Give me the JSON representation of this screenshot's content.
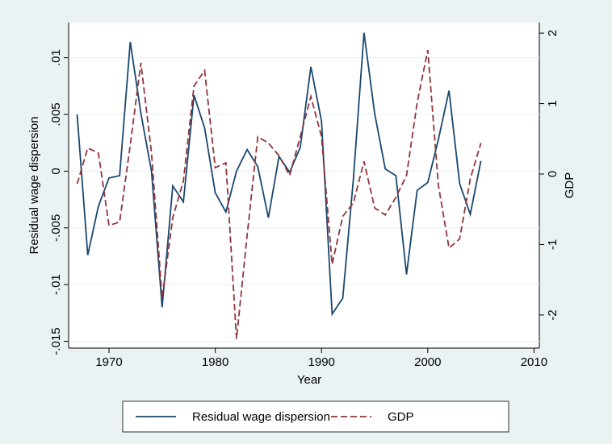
{
  "chart_data": {
    "type": "line",
    "x": [
      1967,
      1968,
      1969,
      1970,
      1971,
      1972,
      1973,
      1974,
      1975,
      1976,
      1977,
      1978,
      1979,
      1980,
      1981,
      1982,
      1983,
      1984,
      1985,
      1986,
      1987,
      1988,
      1989,
      1990,
      1991,
      1992,
      1993,
      1994,
      1995,
      1996,
      1997,
      1998,
      1999,
      2000,
      2001,
      2002,
      2003,
      2004,
      2005
    ],
    "series": [
      {
        "name": "Residual wage dispersion",
        "color": "#1a476f",
        "dash": "solid",
        "values": [
          0.005,
          -0.0074,
          -0.0031,
          -0.0006,
          -0.0004,
          0.0114,
          0.0051,
          0,
          -0.012,
          -0.0013,
          -0.0027,
          0.0067,
          0.0038,
          -0.0019,
          -0.0036,
          0,
          0.0019,
          0.0004,
          -0.0041,
          0.0013,
          -0.0001,
          0.0021,
          0.0092,
          0.0044,
          -0.0126,
          -0.0112,
          -0.0007,
          0.0122,
          0.0051,
          0.0002,
          -0.0004,
          -0.0091,
          -0.0017,
          -0.001,
          0.0028,
          0.0071,
          -0.0011,
          -0.0038,
          0.0009
        ]
      },
      {
        "name": "GDP",
        "color": "#90353b",
        "dash": "dashed",
        "axis": "y2",
        "values": [
          -0.14,
          0.37,
          0.3,
          -0.73,
          -0.68,
          0.41,
          1.58,
          0.3,
          -1.76,
          -0.62,
          -0.1,
          1.25,
          1.47,
          0.09,
          0.16,
          -2.34,
          -0.87,
          0.53,
          0.44,
          0.26,
          -0.02,
          0.53,
          1.1,
          0.53,
          -1.28,
          -0.6,
          -0.41,
          0.18,
          -0.48,
          -0.58,
          -0.33,
          -0.02,
          1.01,
          1.76,
          -0.16,
          -1.05,
          -0.92,
          -0.07,
          0.44
        ]
      }
    ],
    "xlabel": "Year",
    "ylabel": "Residual wage dispersion",
    "y2label": "GDP",
    "xlim": [
      1966.2,
      2010.5
    ],
    "xticks": [
      1970,
      1980,
      1990,
      2000,
      2010
    ],
    "ylim": [
      -0.0156,
      0.0131
    ],
    "yticks": [
      {
        "value": 0.01,
        "label": ".01"
      },
      {
        "value": 0.005,
        "label": ".005"
      },
      0,
      {
        "value": -0.005,
        "label": "-.005"
      },
      {
        "value": -0.01,
        "label": "-.01"
      },
      {
        "value": -0.015,
        "label": "-.015"
      }
    ],
    "y2lim": [
      -2.47,
      2.15
    ],
    "y2ticks": [
      2,
      1,
      0,
      -1,
      -2
    ],
    "grid": true,
    "legend": "bottom"
  }
}
